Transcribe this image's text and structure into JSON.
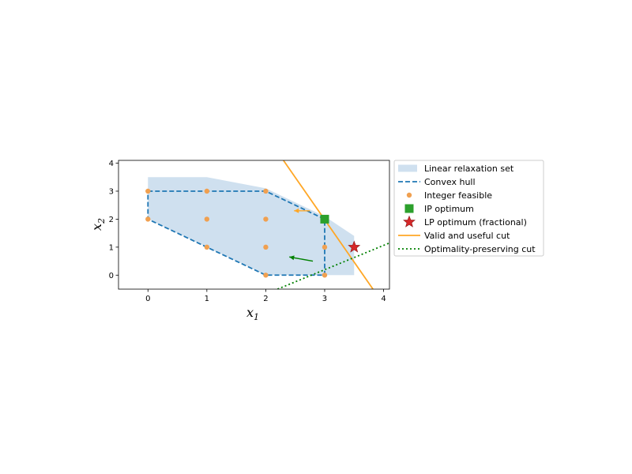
{
  "chart_data": {
    "type": "scatter",
    "xlabel": {
      "base": "x",
      "sub": "1"
    },
    "ylabel": {
      "base": "x",
      "sub": "2"
    },
    "xlim": [
      -0.5,
      4.1
    ],
    "ylim": [
      -0.5,
      4.1
    ],
    "xticks": [
      "0",
      "1",
      "2",
      "3",
      "4"
    ],
    "yticks": [
      "0",
      "1",
      "2",
      "3",
      "4"
    ],
    "grid": false,
    "legend_position": "outside-right",
    "series": [
      {
        "name": "Linear relaxation set",
        "kind": "polygon",
        "color": "#cfe0ef",
        "points": [
          [
            0,
            3.5
          ],
          [
            1,
            3.5
          ],
          [
            2,
            3.1
          ],
          [
            3,
            2.1
          ],
          [
            3.5,
            1.4
          ],
          [
            3.5,
            0
          ],
          [
            2,
            0
          ],
          [
            0,
            2
          ],
          [
            0,
            3.5
          ]
        ]
      },
      {
        "name": "Convex hull",
        "kind": "dashed-line",
        "color": "#1f77b4",
        "points": [
          [
            0,
            3
          ],
          [
            2,
            3
          ],
          [
            3,
            2
          ],
          [
            3,
            0
          ],
          [
            2,
            0
          ],
          [
            0,
            2
          ],
          [
            0,
            3
          ]
        ]
      },
      {
        "name": "Integer feasible",
        "kind": "points",
        "color": "#f0a050",
        "points": [
          [
            0,
            2
          ],
          [
            0,
            3
          ],
          [
            1,
            1
          ],
          [
            1,
            2
          ],
          [
            1,
            3
          ],
          [
            2,
            0
          ],
          [
            2,
            1
          ],
          [
            2,
            2
          ],
          [
            2,
            3
          ],
          [
            3,
            0
          ],
          [
            3,
            1
          ],
          [
            3,
            2
          ]
        ]
      },
      {
        "name": "IP optimum",
        "kind": "square",
        "color": "#2ca02c",
        "points": [
          [
            3,
            2
          ]
        ]
      },
      {
        "name": "LP optimum (fractional)",
        "kind": "star",
        "color": "#d62728",
        "points": [
          [
            3.5,
            1
          ]
        ]
      },
      {
        "name": "Valid and useful cut",
        "kind": "line",
        "color": "#ffa726",
        "points": [
          [
            2.3,
            4.1
          ],
          [
            3.82,
            -0.5
          ]
        ]
      },
      {
        "name": "Optimality-preserving cut",
        "kind": "dotted-line",
        "color": "#008000",
        "points": [
          [
            2.2,
            -0.5
          ],
          [
            4.1,
            1.15
          ]
        ]
      }
    ],
    "arrows": [
      {
        "color": "#ffa726",
        "from": [
          2.75,
          2.3
        ],
        "to": [
          2.48,
          2.3
        ]
      },
      {
        "color": "#008000",
        "from": [
          2.8,
          0.5
        ],
        "to": [
          2.4,
          0.65
        ]
      }
    ]
  }
}
